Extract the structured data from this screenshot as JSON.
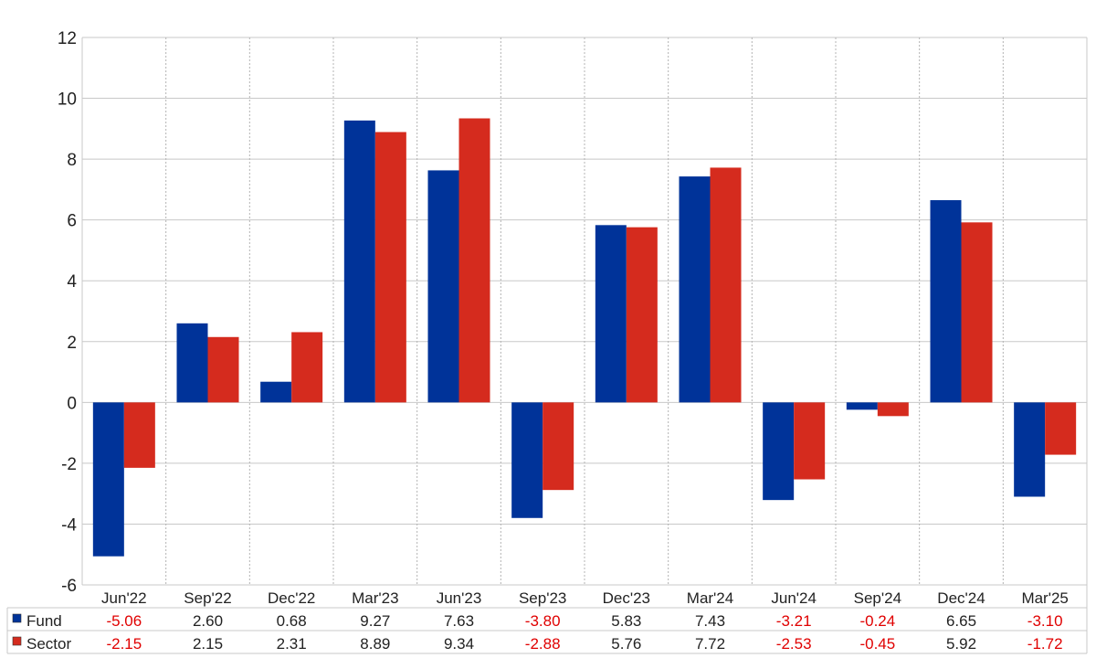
{
  "chart_data": {
    "type": "bar",
    "categories": [
      "Jun'22",
      "Sep'22",
      "Dec'22",
      "Mar'23",
      "Jun'23",
      "Sep'23",
      "Dec'23",
      "Mar'24",
      "Jun'24",
      "Sep'24",
      "Dec'24",
      "Mar'25"
    ],
    "series": [
      {
        "name": "Fund",
        "color": "#003399",
        "values": [
          -5.06,
          2.6,
          0.68,
          9.27,
          7.63,
          -3.8,
          5.83,
          7.43,
          -3.21,
          -0.24,
          6.65,
          -3.1
        ],
        "labels": [
          "-5.06",
          "2.60",
          "0.68",
          "9.27",
          "7.63",
          "-3.80",
          "5.83",
          "7.43",
          "-3.21",
          "-0.24",
          "6.65",
          "-3.10"
        ]
      },
      {
        "name": "Sector",
        "color": "#d52b1e",
        "values": [
          -2.15,
          2.15,
          2.31,
          8.89,
          9.34,
          -2.88,
          5.76,
          7.72,
          -2.53,
          -0.45,
          5.92,
          -1.72
        ],
        "labels": [
          "-2.15",
          "2.15",
          "2.31",
          "8.89",
          "9.34",
          "-2.88",
          "5.76",
          "7.72",
          "-2.53",
          "-0.45",
          "5.92",
          "-1.72"
        ]
      }
    ],
    "yticks": [
      "12",
      "10",
      "8",
      "6",
      "4",
      "2",
      "0",
      "-2",
      "-4",
      "-6"
    ],
    "ylim": [
      -6,
      12
    ],
    "grid": true,
    "legend": "table-bottom",
    "negative_color": "#e00000",
    "title": "",
    "xlabel": "",
    "ylabel": ""
  }
}
